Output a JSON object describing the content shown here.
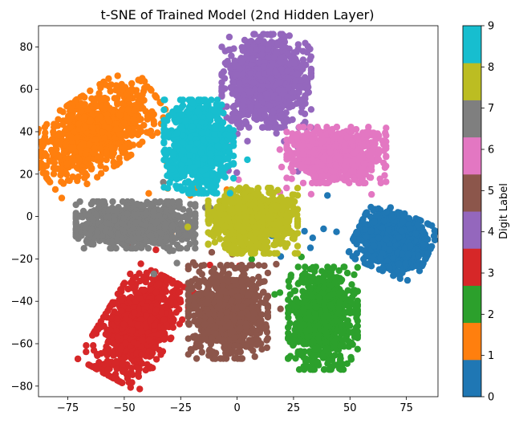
{
  "chart_data": {
    "type": "scatter",
    "title": "t-SNE of Trained Model (2nd Hidden Layer)",
    "xlabel": "",
    "ylabel": "",
    "xlim": [
      -88,
      89
    ],
    "ylim": [
      -85,
      90
    ],
    "x_ticks": [
      -75,
      -50,
      -25,
      0,
      25,
      50,
      75
    ],
    "y_ticks": [
      -80,
      -60,
      -40,
      -20,
      0,
      20,
      40,
      60,
      80
    ],
    "grid": false,
    "colorbar": {
      "label": "Digit Label",
      "range": [
        0,
        9
      ],
      "ticks": [
        0,
        1,
        2,
        3,
        4,
        5,
        6,
        7,
        8,
        9
      ],
      "colors": [
        "#1f77b4",
        "#ff7f0e",
        "#2ca02c",
        "#d62728",
        "#9467bd",
        "#8c564b",
        "#e377c2",
        "#7f7f7f",
        "#bcbd22",
        "#17becf"
      ]
    },
    "clusters": [
      {
        "label": 0,
        "center": [
          69,
          -12
        ],
        "spread": [
          7.5,
          6.5
        ],
        "angle_deg": -25
      },
      {
        "label": 1,
        "center": [
          -62,
          40
        ],
        "spread": [
          8,
          14
        ],
        "angle_deg": -55
      },
      {
        "label": 2,
        "center": [
          38,
          -48
        ],
        "spread": [
          7,
          11
        ],
        "angle_deg": 0
      },
      {
        "label": 3,
        "center": [
          -44,
          -52
        ],
        "spread": [
          7,
          12
        ],
        "angle_deg": -30
      },
      {
        "label": 4,
        "center": [
          13,
          64
        ],
        "spread": [
          9,
          10
        ],
        "angle_deg": 0
      },
      {
        "label": 5,
        "center": [
          -4,
          -45
        ],
        "spread": [
          8,
          10
        ],
        "angle_deg": 0
      },
      {
        "label": 6,
        "center": [
          44,
          29
        ],
        "spread": [
          10,
          6
        ],
        "angle_deg": 0
      },
      {
        "label": 7,
        "center": [
          -45,
          -4
        ],
        "spread": [
          12,
          5
        ],
        "angle_deg": 0
      },
      {
        "label": 8,
        "center": [
          7,
          -2
        ],
        "spread": [
          9,
          7
        ],
        "angle_deg": 0
      },
      {
        "label": 9,
        "center": [
          -17,
          33
        ],
        "spread": [
          7,
          10
        ],
        "angle_deg": 0
      }
    ]
  }
}
